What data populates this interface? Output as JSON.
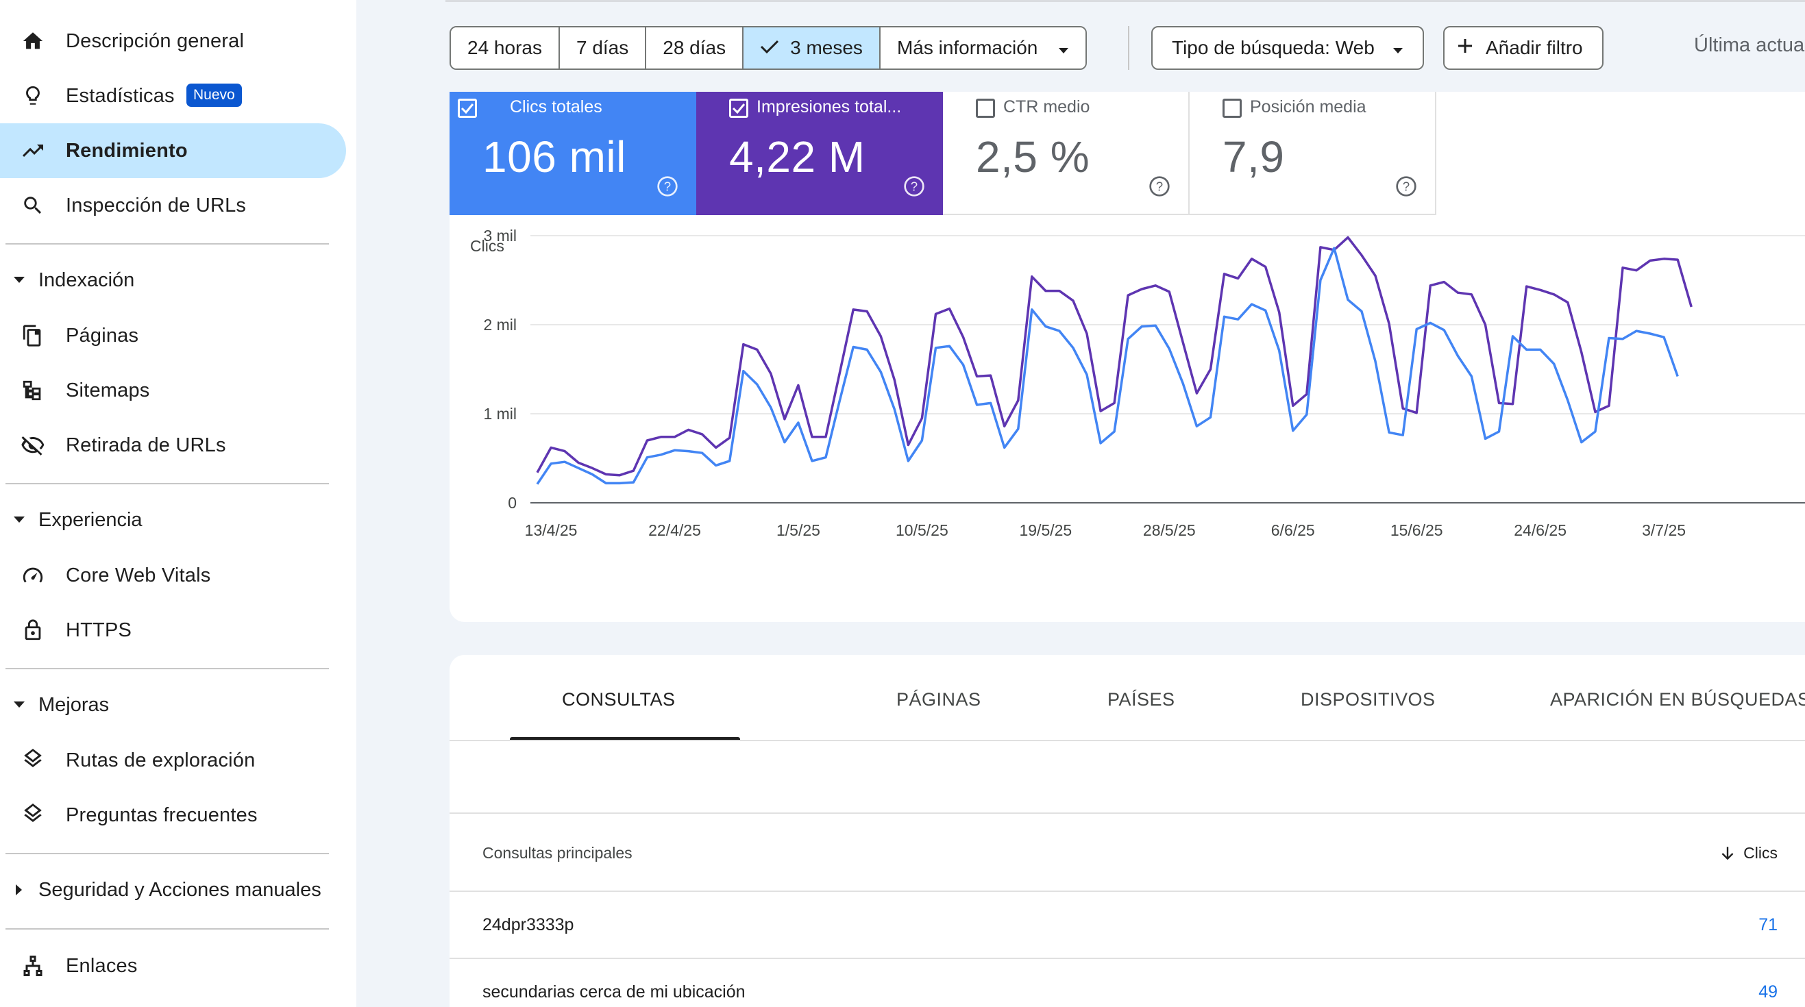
{
  "sidebar": {
    "items_top": [
      {
        "label": "Descripción general",
        "icon": "home-icon"
      },
      {
        "label": "Estadísticas",
        "icon": "lightbulb-icon",
        "badge": "Nuevo"
      },
      {
        "label": "Rendimiento",
        "icon": "trending-up-icon",
        "active": true
      },
      {
        "label": "Inspección de URLs",
        "icon": "search-icon"
      }
    ],
    "sections": [
      {
        "title": "Indexación",
        "items": [
          {
            "label": "Páginas",
            "icon": "pages-icon"
          },
          {
            "label": "Sitemaps",
            "icon": "sitemap-icon"
          },
          {
            "label": "Retirada de URLs",
            "icon": "eye-off-icon"
          }
        ]
      },
      {
        "title": "Experiencia",
        "items": [
          {
            "label": "Core Web Vitals",
            "icon": "speedometer-icon"
          },
          {
            "label": "HTTPS",
            "icon": "lock-icon"
          }
        ]
      },
      {
        "title": "Mejoras",
        "items": [
          {
            "label": "Rutas de exploración",
            "icon": "layers-icon"
          },
          {
            "label": "Preguntas frecuentes",
            "icon": "layers-icon"
          }
        ]
      },
      {
        "title": "Seguridad y Acciones manuales",
        "collapsed": true,
        "items": []
      }
    ],
    "bottom_item": {
      "label": "Enlaces",
      "icon": "links-icon"
    }
  },
  "toolbar": {
    "ranges": [
      "24 horas",
      "7 días",
      "28 días",
      "3 meses"
    ],
    "selected_range": "3 meses",
    "more": "Más información",
    "search_type": "Tipo de búsqueda: Web",
    "add_filter": "Añadir filtro",
    "last_update": "Última actua"
  },
  "metrics": {
    "clicks": {
      "label": "Clics totales",
      "value": "106 mil",
      "checked": true
    },
    "impressions": {
      "label": "Impresiones total...",
      "value": "4,22 M",
      "checked": true
    },
    "ctr": {
      "label": "CTR medio",
      "value": "2,5 %",
      "checked": false
    },
    "position": {
      "label": "Posición media",
      "value": "7,9",
      "checked": false
    }
  },
  "colors": {
    "clicks": "#4285f4",
    "impressions": "#5e35b1",
    "active_nav": "#c2e7ff",
    "link": "#1a73e8"
  },
  "chart_data": {
    "type": "line",
    "ylabel": "Clics",
    "yticks": [
      "0",
      "1 mil",
      "2 mil",
      "3 mil"
    ],
    "ylim": [
      0,
      3000
    ],
    "xticks": [
      "13/4/25",
      "22/4/25",
      "1/5/25",
      "10/5/25",
      "19/5/25",
      "28/5/25",
      "6/6/25",
      "15/6/25",
      "24/6/25",
      "3/7/25"
    ],
    "x_start": "2025-04-12",
    "series": [
      {
        "key": "impressions",
        "color": "#5e35b1",
        "values": [
          340,
          620,
          580,
          450,
          390,
          320,
          310,
          360,
          700,
          740,
          740,
          820,
          770,
          620,
          730,
          1780,
          1720,
          1450,
          940,
          1320,
          740,
          740,
          1450,
          2170,
          2150,
          1870,
          1380,
          650,
          950,
          2120,
          2180,
          1860,
          1420,
          1430,
          860,
          1150,
          2540,
          2380,
          2380,
          2270,
          1900,
          1030,
          1120,
          2330,
          2400,
          2440,
          2370,
          1800,
          1230,
          1500,
          2570,
          2520,
          2740,
          2650,
          2140,
          1090,
          1220,
          2870,
          2840,
          2980,
          2780,
          2550,
          2010,
          1060,
          1010,
          2440,
          2480,
          2360,
          2340,
          2000,
          1120,
          1110,
          2430,
          2390,
          2340,
          2250,
          1690,
          1020,
          1090,
          2640,
          2610,
          2720,
          2740,
          2730,
          2200
        ]
      },
      {
        "key": "clicks",
        "color": "#4285f4",
        "values": [
          210,
          440,
          460,
          390,
          320,
          220,
          220,
          230,
          510,
          540,
          590,
          580,
          560,
          420,
          470,
          1480,
          1330,
          1070,
          680,
          900,
          470,
          510,
          1140,
          1750,
          1720,
          1470,
          1050,
          470,
          700,
          1740,
          1760,
          1550,
          1100,
          1120,
          620,
          830,
          2170,
          1980,
          1930,
          1740,
          1440,
          670,
          800,
          1840,
          1980,
          1990,
          1730,
          1340,
          860,
          960,
          2090,
          2060,
          2230,
          2160,
          1710,
          810,
          990,
          2500,
          2860,
          2280,
          2150,
          1590,
          790,
          760,
          1950,
          2020,
          1940,
          1650,
          1420,
          720,
          800,
          1870,
          1720,
          1720,
          1560,
          1150,
          680,
          800,
          1850,
          1840,
          1930,
          1900,
          1860,
          1420
        ]
      }
    ]
  },
  "bottom": {
    "tabs": [
      "CONSULTAS",
      "PÁGINAS",
      "PAÍSES",
      "DISPOSITIVOS",
      "APARICIÓN EN BÚSQUEDAS"
    ],
    "active_tab": "CONSULTAS",
    "col_query": "Consultas principales",
    "col_clicks": "Clics",
    "rows": [
      {
        "query": "24dpr3333p",
        "clicks": "71"
      },
      {
        "query": "secundarias cerca de mi ubicación",
        "clicks": "49"
      }
    ]
  }
}
